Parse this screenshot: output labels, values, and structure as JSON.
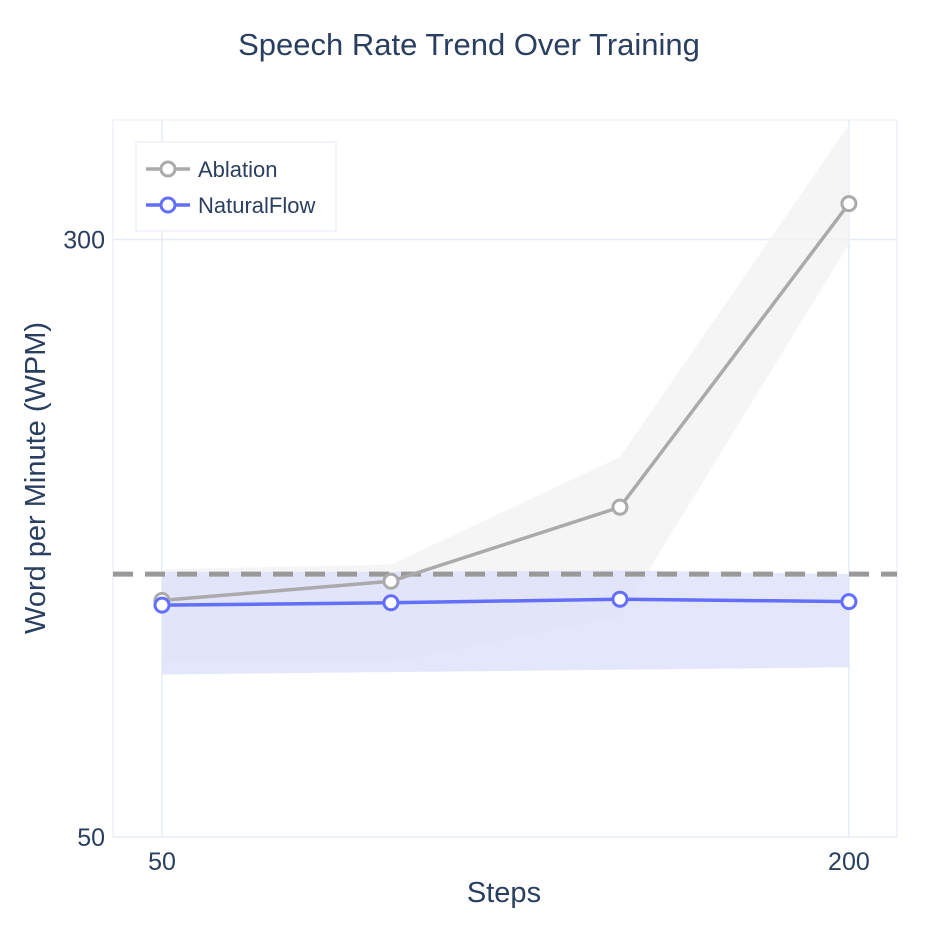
{
  "chart_data": {
    "type": "line",
    "title": "Speech Rate Trend Over Training",
    "xlabel": "Steps",
    "ylabel": "Word per Minute (WPM)",
    "x": [
      50,
      100,
      150,
      200
    ],
    "xlim": [
      39.3,
      210.5
    ],
    "x_ticks": [
      50,
      200
    ],
    "ylim": [
      50,
      350
    ],
    "y_ticks": [
      50,
      300
    ],
    "grid": true,
    "legend_position": "top-left",
    "reference_line": {
      "y": 160,
      "style": "dashed",
      "color": "#999999"
    },
    "series": [
      {
        "name": "Ablation",
        "color": "#aaaaaa",
        "band_color": "#f2f2f2",
        "values": [
          149,
          157,
          188,
          315
        ],
        "lower": [
          123,
          123,
          142,
          298
        ],
        "upper": [
          162,
          164,
          209,
          348
        ]
      },
      {
        "name": "NaturalFlow",
        "color": "#636efa",
        "band_color": "#dde0fb",
        "values": [
          147,
          148,
          149.5,
          148.5
        ],
        "lower": [
          118,
          119,
          120,
          121
        ],
        "upper": [
          161,
          161,
          161.5,
          160
        ]
      }
    ]
  }
}
